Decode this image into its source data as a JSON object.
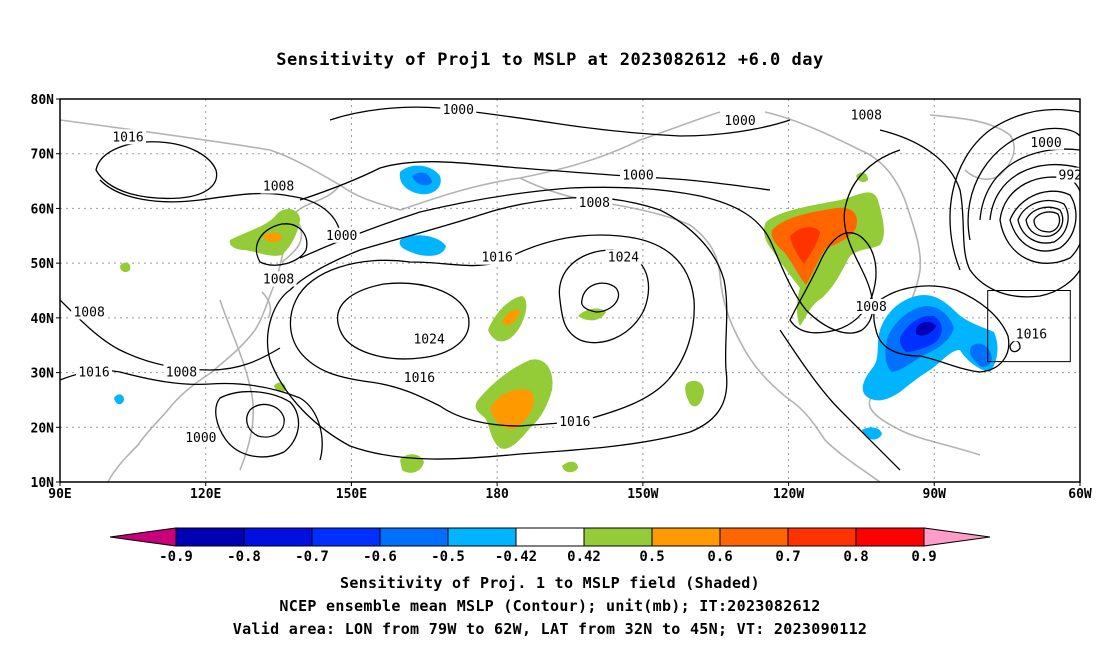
{
  "title": "Sensitivity of Proj1 to MSLP at 2023082612 +6.0 day",
  "map": {
    "lon_range": [
      90,
      300
    ],
    "lat_range": [
      10,
      80
    ],
    "lat_ticks": [
      "10N",
      "20N",
      "30N",
      "40N",
      "50N",
      "60N",
      "70N",
      "80N"
    ],
    "lon_ticks": [
      "90E",
      "120E",
      "150E",
      "180",
      "150W",
      "120W",
      "90W",
      "60W"
    ],
    "grid": true,
    "valid_area_box": {
      "lon": [
        -79,
        -62
      ],
      "lat": [
        32,
        45
      ]
    },
    "contour_labels": [
      {
        "text": "1016",
        "lon": 104,
        "lat": 73
      },
      {
        "text": "1008",
        "lon": 135,
        "lat": 64
      },
      {
        "text": "1000",
        "lon": 148,
        "lat": 55
      },
      {
        "text": "1008",
        "lon": 135,
        "lat": 47
      },
      {
        "text": "1000",
        "lon": 172,
        "lat": 78
      },
      {
        "text": "1000",
        "lon": 230,
        "lat": 76
      },
      {
        "text": "1008",
        "lon": 256,
        "lat": 77
      },
      {
        "text": "1000",
        "lon": 209,
        "lat": 66
      },
      {
        "text": "1008",
        "lon": 200,
        "lat": 61
      },
      {
        "text": "1016",
        "lon": 180,
        "lat": 51
      },
      {
        "text": "1024",
        "lon": 206,
        "lat": 51
      },
      {
        "text": "1024",
        "lon": 166,
        "lat": 36
      },
      {
        "text": "1016",
        "lon": 164,
        "lat": 29
      },
      {
        "text": "1016",
        "lon": 196,
        "lat": 21
      },
      {
        "text": "1008",
        "lon": 96,
        "lat": 41
      },
      {
        "text": "1016",
        "lon": 97,
        "lat": 30
      },
      {
        "text": "1008",
        "lon": 115,
        "lat": 30
      },
      {
        "text": "1000",
        "lon": 119,
        "lat": 18
      },
      {
        "text": "1008",
        "lon": 257,
        "lat": 42
      },
      {
        "text": "1016",
        "lon": 290,
        "lat": 37
      },
      {
        "text": "1000",
        "lon": 293,
        "lat": 72
      },
      {
        "text": "992",
        "lon": 298,
        "lat": 66
      }
    ]
  },
  "colorbar": {
    "labels": [
      "-0.9",
      "-0.8",
      "-0.7",
      "-0.6",
      "-0.5",
      "-0.42",
      "0.42",
      "0.5",
      "0.6",
      "0.7",
      "0.8",
      "0.9"
    ],
    "colors": [
      "#0000b4",
      "#0010e0",
      "#0030ff",
      "#0070ff",
      "#00b4ff",
      "#ffffff",
      "#94cc38",
      "#ff9900",
      "#ff6600",
      "#ff3300",
      "#ff0000"
    ],
    "low_end_color": "#c8007a",
    "high_end_color": "#ff9cc8"
  },
  "footer": {
    "line1": "Sensitivity of Proj. 1 to MSLP field (Shaded)",
    "line2": "NCEP ensemble mean MSLP (Contour); unit(mb); IT:2023082612",
    "line3": "Valid area: LON from 79W to 62W, LAT from 32N to 45N; VT: 2023090112"
  }
}
